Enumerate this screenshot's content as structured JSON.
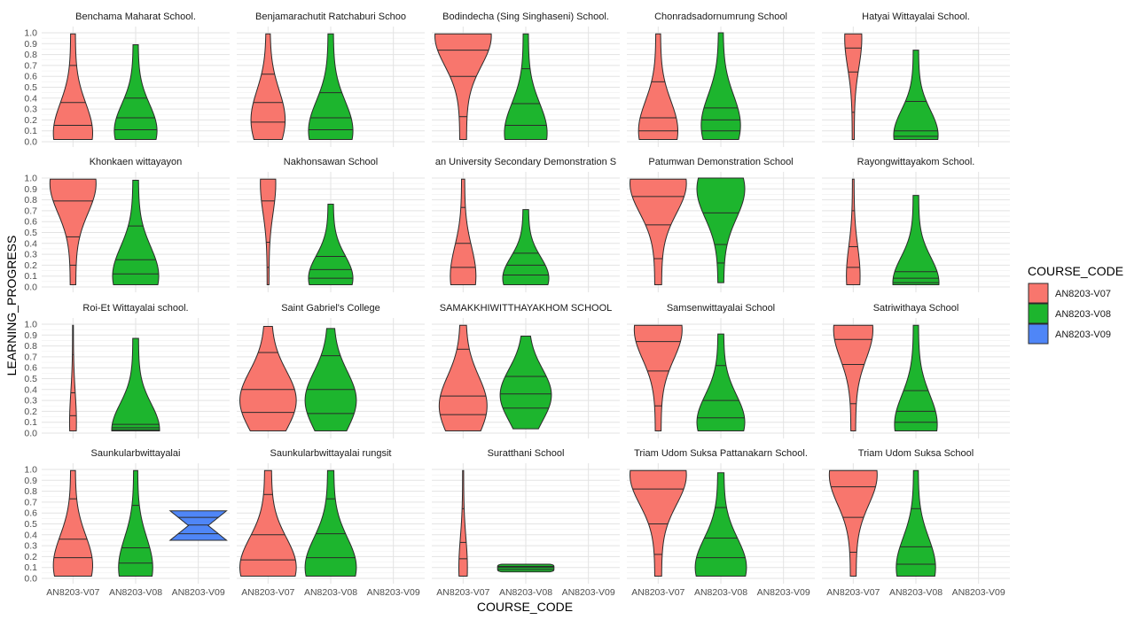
{
  "chart_data": {
    "type": "violin",
    "xlabel": "COURSE_CODE",
    "ylabel": "LEARNING_PROGRESS",
    "ylim": [
      0,
      1
    ],
    "yticks": [
      "0.0",
      "0.1",
      "0.2",
      "0.3",
      "0.4",
      "0.5",
      "0.6",
      "0.7",
      "0.8",
      "0.9",
      "1.0"
    ],
    "categories": [
      "AN8203-V07",
      "AN8203-V08",
      "AN8203-V09"
    ],
    "legend": {
      "title": "COURSE_CODE",
      "position": "right",
      "entries": [
        {
          "label": "AN8203-V07",
          "color": "#F8766D"
        },
        {
          "label": "AN8203-V08",
          "color": "#1DB52E"
        },
        {
          "label": "AN8203-V09",
          "color": "#4F86F7"
        }
      ]
    },
    "grid": true,
    "panels": [
      {
        "title": "Benchama Maharat School.",
        "violins": [
          {
            "course": "AN8203-V07",
            "min": 0.02,
            "max": 0.99,
            "quantiles": [
              0.15,
              0.36,
              0.7
            ],
            "maxw": 0.46,
            "mode": 0.08
          },
          {
            "course": "AN8203-V08",
            "min": 0.02,
            "max": 0.89,
            "quantiles": [
              0.11,
              0.22,
              0.4
            ],
            "maxw": 0.5,
            "mode": 0.1
          }
        ]
      },
      {
        "title": "Benjamarachutit Ratchaburi Schoo",
        "violins": [
          {
            "course": "AN8203-V07",
            "min": 0.02,
            "max": 0.99,
            "quantiles": [
              0.18,
              0.36,
              0.62
            ],
            "maxw": 0.4,
            "mode": 0.2
          },
          {
            "course": "AN8203-V08",
            "min": 0.02,
            "max": 0.99,
            "quantiles": [
              0.11,
              0.22,
              0.45
            ],
            "maxw": 0.52,
            "mode": 0.1
          }
        ]
      },
      {
        "title": "Bodindecha (Sing Singhaseni) School.",
        "violins": [
          {
            "course": "AN8203-V07",
            "min": 0.02,
            "max": 0.99,
            "quantiles": [
              0.23,
              0.6,
              0.84
            ],
            "maxw": 0.66,
            "mode": 0.97
          },
          {
            "course": "AN8203-V08",
            "min": 0.02,
            "max": 0.99,
            "quantiles": [
              0.15,
              0.35,
              0.67
            ],
            "maxw": 0.5,
            "mode": 0.08
          }
        ]
      },
      {
        "title": "Chonradsadornumrung School",
        "violins": [
          {
            "course": "AN8203-V07",
            "min": 0.02,
            "max": 0.99,
            "quantiles": [
              0.1,
              0.22,
              0.55
            ],
            "maxw": 0.46,
            "mode": 0.1
          },
          {
            "course": "AN8203-V08",
            "min": 0.02,
            "max": 1.0,
            "quantiles": [
              0.1,
              0.2,
              0.31
            ],
            "maxw": 0.46,
            "mode": 0.15
          }
        ]
      },
      {
        "title": "Hatyai Wittayalai School.",
        "violins": [
          {
            "course": "AN8203-V07",
            "min": 0.02,
            "max": 0.99,
            "quantiles": [
              0.27,
              0.64,
              0.86
            ],
            "maxw": 0.2,
            "mode": 0.95
          },
          {
            "course": "AN8203-V08",
            "min": 0.02,
            "max": 0.84,
            "quantiles": [
              0.05,
              0.1,
              0.37
            ],
            "maxw": 0.52,
            "mode": 0.06
          }
        ]
      },
      {
        "title": "Khonkaen wittayayon",
        "violins": [
          {
            "course": "AN8203-V07",
            "min": 0.02,
            "max": 0.99,
            "quantiles": [
              0.2,
              0.46,
              0.79
            ],
            "maxw": 0.54,
            "mode": 0.95
          },
          {
            "course": "AN8203-V08",
            "min": 0.02,
            "max": 0.98,
            "quantiles": [
              0.12,
              0.25,
              0.56
            ],
            "maxw": 0.54,
            "mode": 0.1
          }
        ]
      },
      {
        "title": "Nakhonsawan School",
        "violins": [
          {
            "course": "AN8203-V07",
            "min": 0.02,
            "max": 0.99,
            "quantiles": [
              0.18,
              0.41,
              0.79
            ],
            "maxw": 0.18,
            "mode": 0.95
          },
          {
            "course": "AN8203-V08",
            "min": 0.02,
            "max": 0.76,
            "quantiles": [
              0.08,
              0.16,
              0.28
            ],
            "maxw": 0.52,
            "mode": 0.08
          }
        ]
      },
      {
        "title": "an University Secondary Demonstration S",
        "violins": [
          {
            "course": "AN8203-V07",
            "min": 0.02,
            "max": 0.99,
            "quantiles": [
              0.18,
              0.4,
              0.73
            ],
            "maxw": 0.3,
            "mode": 0.1
          },
          {
            "course": "AN8203-V08",
            "min": 0.02,
            "max": 0.71,
            "quantiles": [
              0.11,
              0.2,
              0.31
            ],
            "maxw": 0.54,
            "mode": 0.08
          }
        ]
      },
      {
        "title": "Patumwan Demonstration School",
        "violins": [
          {
            "course": "AN8203-V07",
            "min": 0.02,
            "max": 0.99,
            "quantiles": [
              0.26,
              0.57,
              0.83
            ],
            "maxw": 0.66,
            "mode": 0.95
          },
          {
            "course": "AN8203-V08",
            "min": 0.04,
            "max": 1.0,
            "quantiles": [
              0.22,
              0.39,
              0.68
            ],
            "maxw": 0.56,
            "mode": 0.9
          }
        ]
      },
      {
        "title": "Rayongwittayakom School.",
        "violins": [
          {
            "course": "AN8203-V07",
            "min": 0.02,
            "max": 0.99,
            "quantiles": [
              0.18,
              0.37,
              0.7
            ],
            "maxw": 0.16,
            "mode": 0.1
          },
          {
            "course": "AN8203-V08",
            "min": 0.02,
            "max": 0.84,
            "quantiles": [
              0.04,
              0.08,
              0.14
            ],
            "maxw": 0.54,
            "mode": 0.04
          }
        ]
      },
      {
        "title": "Roi-Et Wittayalai school.",
        "violins": [
          {
            "course": "AN8203-V07",
            "min": 0.02,
            "max": 0.99,
            "quantiles": [
              0.16,
              0.37,
              0.72
            ],
            "maxw": 0.08,
            "mode": 0.1
          },
          {
            "course": "AN8203-V08",
            "min": 0.02,
            "max": 0.87,
            "quantiles": [
              0.03,
              0.05,
              0.08
            ],
            "maxw": 0.56,
            "mode": 0.03
          }
        ]
      },
      {
        "title": "Saint Gabriel's College",
        "violins": [
          {
            "course": "AN8203-V07",
            "min": 0.02,
            "max": 0.98,
            "quantiles": [
              0.19,
              0.4,
              0.74
            ],
            "maxw": 0.66,
            "mode": 0.3
          },
          {
            "course": "AN8203-V08",
            "min": 0.02,
            "max": 0.96,
            "quantiles": [
              0.18,
              0.4,
              0.71
            ],
            "maxw": 0.6,
            "mode": 0.3
          }
        ]
      },
      {
        "title": "SAMAKKHIWITTHAYAKHOM SCHOOL",
        "violins": [
          {
            "course": "AN8203-V07",
            "min": 0.02,
            "max": 0.99,
            "quantiles": [
              0.17,
              0.34,
              0.77
            ],
            "maxw": 0.56,
            "mode": 0.25
          },
          {
            "course": "AN8203-V08",
            "min": 0.04,
            "max": 0.89,
            "quantiles": [
              0.23,
              0.36,
              0.52
            ],
            "maxw": 0.6,
            "mode": 0.35
          }
        ]
      },
      {
        "title": "Samsenwittayalai School",
        "violins": [
          {
            "course": "AN8203-V07",
            "min": 0.02,
            "max": 0.99,
            "quantiles": [
              0.25,
              0.57,
              0.84
            ],
            "maxw": 0.56,
            "mode": 0.95
          },
          {
            "course": "AN8203-V08",
            "min": 0.02,
            "max": 0.91,
            "quantiles": [
              0.14,
              0.3,
              0.62
            ],
            "maxw": 0.56,
            "mode": 0.1
          }
        ]
      },
      {
        "title": "Satriwithaya School",
        "violins": [
          {
            "course": "AN8203-V07",
            "min": 0.02,
            "max": 0.99,
            "quantiles": [
              0.27,
              0.63,
              0.86
            ],
            "maxw": 0.46,
            "mode": 0.95
          },
          {
            "course": "AN8203-V08",
            "min": 0.02,
            "max": 0.99,
            "quantiles": [
              0.1,
              0.2,
              0.39
            ],
            "maxw": 0.5,
            "mode": 0.08
          }
        ]
      },
      {
        "title": "Saunkularbwittayalai",
        "violins": [
          {
            "course": "AN8203-V07",
            "min": 0.02,
            "max": 0.99,
            "quantiles": [
              0.19,
              0.36,
              0.73
            ],
            "maxw": 0.46,
            "mode": 0.12
          },
          {
            "course": "AN8203-V08",
            "min": 0.02,
            "max": 0.99,
            "quantiles": [
              0.14,
              0.28,
              0.67
            ],
            "maxw": 0.4,
            "mode": 0.1
          },
          {
            "course": "AN8203-V09",
            "min": 0.35,
            "max": 0.62,
            "quantiles": [
              0.41,
              0.49,
              0.56
            ],
            "maxw": 0.66,
            "mode": 0.35,
            "shape": "bowtie"
          }
        ]
      },
      {
        "title": "Saunkularbwittayalai rungsit",
        "violins": [
          {
            "course": "AN8203-V07",
            "min": 0.02,
            "max": 0.99,
            "quantiles": [
              0.17,
              0.4,
              0.77
            ],
            "maxw": 0.66,
            "mode": 0.1
          },
          {
            "course": "AN8203-V08",
            "min": 0.02,
            "max": 0.99,
            "quantiles": [
              0.19,
              0.41,
              0.73
            ],
            "maxw": 0.6,
            "mode": 0.1
          }
        ]
      },
      {
        "title": "Suratthani School",
        "violins": [
          {
            "course": "AN8203-V07",
            "min": 0.02,
            "max": 0.99,
            "quantiles": [
              0.18,
              0.33,
              0.64
            ],
            "maxw": 0.1,
            "mode": 0.1
          },
          {
            "course": "AN8203-V08",
            "min": 0.06,
            "max": 0.13,
            "quantiles": [
              0.08,
              0.1,
              0.11
            ],
            "maxw": 0.66,
            "mode": 0.1,
            "shape": "flat"
          }
        ]
      },
      {
        "title": "Triam Udom Suksa Pattanakarn School.",
        "violins": [
          {
            "course": "AN8203-V07",
            "min": 0.02,
            "max": 0.99,
            "quantiles": [
              0.22,
              0.5,
              0.82
            ],
            "maxw": 0.66,
            "mode": 0.95
          },
          {
            "course": "AN8203-V08",
            "min": 0.02,
            "max": 0.97,
            "quantiles": [
              0.19,
              0.37,
              0.65
            ],
            "maxw": 0.6,
            "mode": 0.1
          }
        ]
      },
      {
        "title": "Triam Udom Suksa School",
        "violins": [
          {
            "course": "AN8203-V07",
            "min": 0.02,
            "max": 0.99,
            "quantiles": [
              0.24,
              0.56,
              0.84
            ],
            "maxw": 0.56,
            "mode": 0.95
          },
          {
            "course": "AN8203-V08",
            "min": 0.02,
            "max": 0.99,
            "quantiles": [
              0.13,
              0.29,
              0.64
            ],
            "maxw": 0.46,
            "mode": 0.1
          }
        ]
      }
    ]
  }
}
